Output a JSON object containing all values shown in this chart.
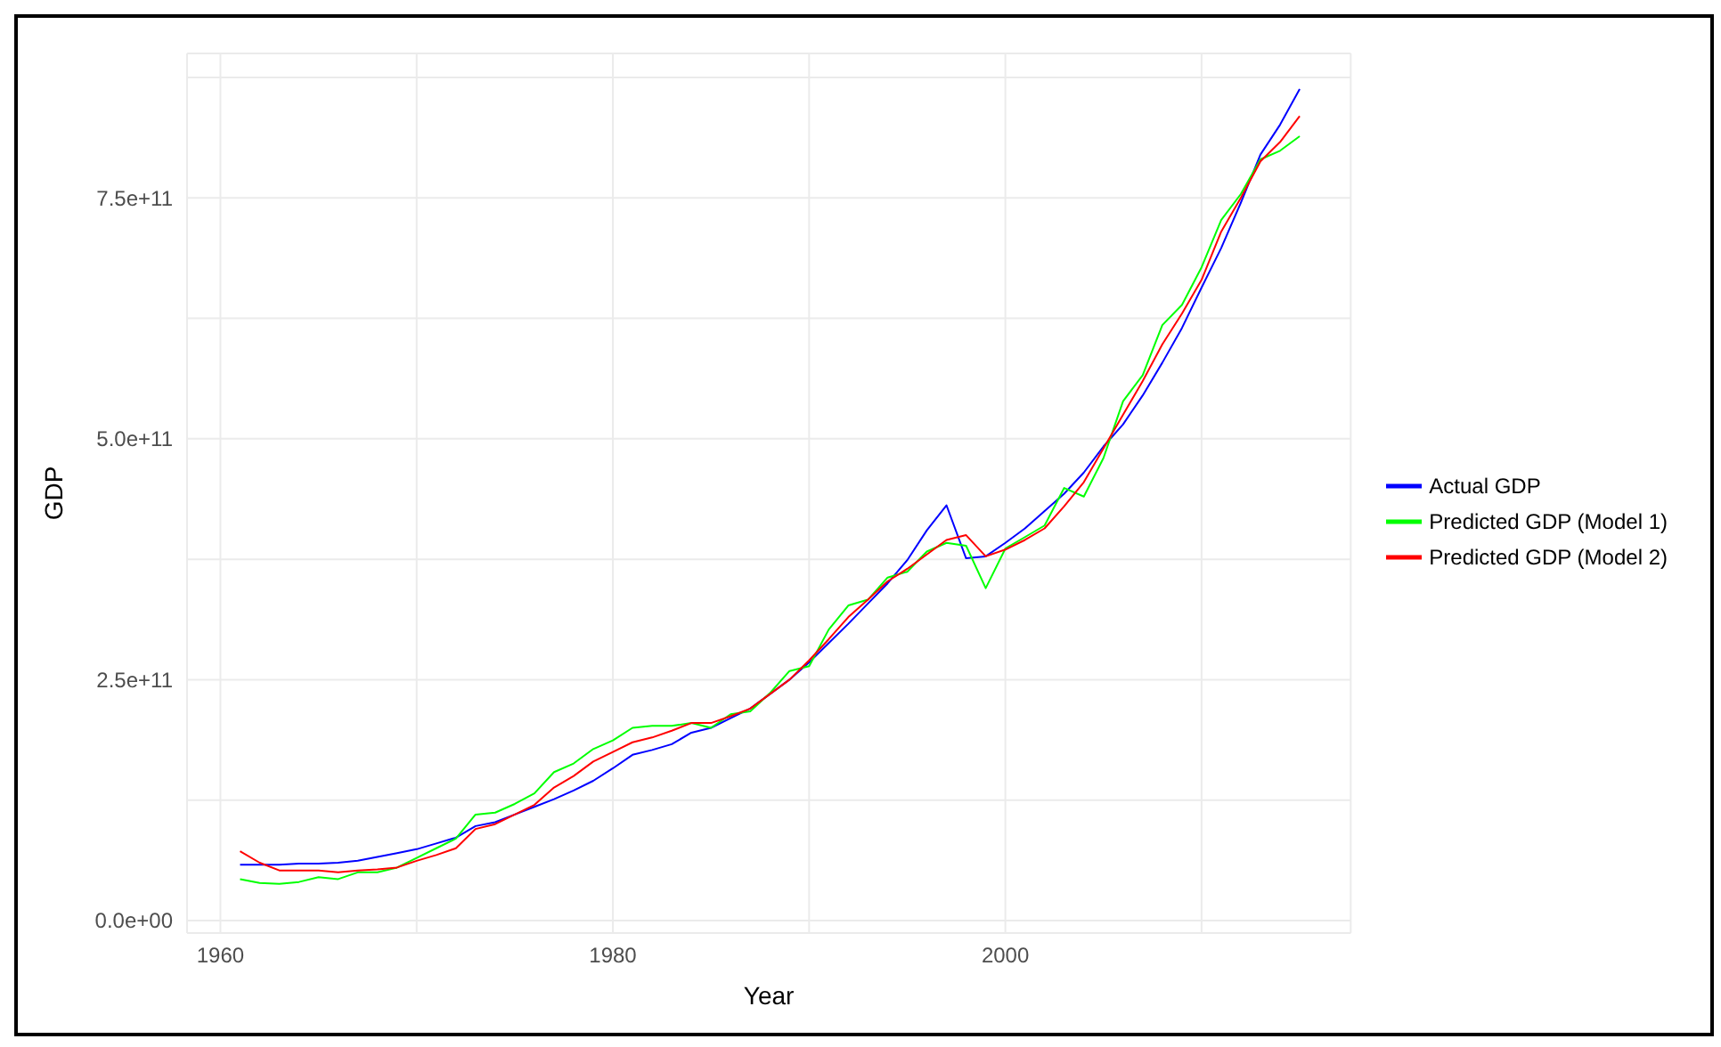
{
  "chart_data": {
    "type": "line",
    "xlabel": "Year",
    "ylabel": "GDP",
    "x": [
      1961,
      1962,
      1963,
      1964,
      1965,
      1966,
      1967,
      1968,
      1969,
      1970,
      1971,
      1972,
      1973,
      1974,
      1975,
      1976,
      1977,
      1978,
      1979,
      1980,
      1981,
      1982,
      1983,
      1984,
      1985,
      1986,
      1987,
      1988,
      1989,
      1990,
      1991,
      1992,
      1993,
      1994,
      1995,
      1996,
      1997,
      1998,
      1999,
      2000,
      2001,
      2002,
      2003,
      2004,
      2005,
      2006,
      2007,
      2008,
      2009,
      2010,
      2011,
      2012,
      2013,
      2014,
      2015
    ],
    "series": [
      {
        "name": "Actual GDP",
        "color": "#0000ff",
        "values": [
          58000000000.0,
          58000000000.0,
          58000000000.0,
          59000000000.0,
          59000000000.0,
          60000000000.0,
          62000000000.0,
          66000000000.0,
          70000000000.0,
          74000000000.0,
          80000000000.0,
          86000000000.0,
          98000000000.0,
          102000000000.0,
          110000000000.0,
          118000000000.0,
          126000000000.0,
          135000000000.0,
          145000000000.0,
          158000000000.0,
          172000000000.0,
          177000000000.0,
          183000000000.0,
          195000000000.0,
          200000000000.0,
          210000000000.0,
          220000000000.0,
          235000000000.0,
          250000000000.0,
          268000000000.0,
          288000000000.0,
          308000000000.0,
          329000000000.0,
          350000000000.0,
          374000000000.0,
          405000000000.0,
          431000000000.0,
          376000000000.0,
          378000000000.0,
          392000000000.0,
          407000000000.0,
          425000000000.0,
          443000000000.0,
          465000000000.0,
          492000000000.0,
          515000000000.0,
          545000000000.0,
          579000000000.0,
          615000000000.0,
          657000000000.0,
          698000000000.0,
          745000000000.0,
          795000000000.0,
          826000000000.0,
          863000000000.0
        ]
      },
      {
        "name": "Predicted GDP (Model 1)",
        "color": "#00ff00",
        "values": [
          43000000000.0,
          39000000000.0,
          38000000000.0,
          40000000000.0,
          45000000000.0,
          43000000000.0,
          50000000000.0,
          50000000000.0,
          55000000000.0,
          65000000000.0,
          75000000000.0,
          85000000000.0,
          110000000000.0,
          112000000000.0,
          121000000000.0,
          132000000000.0,
          154000000000.0,
          163000000000.0,
          178000000000.0,
          187000000000.0,
          200000000000.0,
          202000000000.0,
          202000000000.0,
          205000000000.0,
          200000000000.0,
          214000000000.0,
          217000000000.0,
          236000000000.0,
          259000000000.0,
          264000000000.0,
          302000000000.0,
          327000000000.0,
          333000000000.0,
          356000000000.0,
          362000000000.0,
          383000000000.0,
          392000000000.0,
          389000000000.0,
          345000000000.0,
          386000000000.0,
          398000000000.0,
          410000000000.0,
          449000000000.0,
          440000000000.0,
          480000000000.0,
          539000000000.0,
          566000000000.0,
          618000000000.0,
          639000000000.0,
          678000000000.0,
          727000000000.0,
          754000000000.0,
          790000000000.0,
          799000000000.0,
          814000000000.0
        ]
      },
      {
        "name": "Predicted GDP (Model 2)",
        "color": "#ff0000",
        "values": [
          72000000000.0,
          60000000000.0,
          52000000000.0,
          52000000000.0,
          52000000000.0,
          50000000000.0,
          52000000000.0,
          53000000000.0,
          55000000000.0,
          62000000000.0,
          68000000000.0,
          75000000000.0,
          95000000000.0,
          100000000000.0,
          110000000000.0,
          120000000000.0,
          138000000000.0,
          150000000000.0,
          165000000000.0,
          175000000000.0,
          185000000000.0,
          190000000000.0,
          197000000000.0,
          205000000000.0,
          205000000000.0,
          212000000000.0,
          220000000000.0,
          235000000000.0,
          250000000000.0,
          270000000000.0,
          292000000000.0,
          315000000000.0,
          333000000000.0,
          352000000000.0,
          365000000000.0,
          380000000000.0,
          395000000000.0,
          400000000000.0,
          378000000000.0,
          385000000000.0,
          395000000000.0,
          407000000000.0,
          430000000000.0,
          455000000000.0,
          490000000000.0,
          525000000000.0,
          560000000000.0,
          598000000000.0,
          630000000000.0,
          665000000000.0,
          715000000000.0,
          750000000000.0,
          788000000000.0,
          808000000000.0,
          835000000000.0
        ]
      }
    ],
    "xlim": [
      1958.3,
      2017.6
    ],
    "xticks": [
      1960,
      {
        "value": 1970,
        "label": null
      },
      1980,
      {
        "value": 1990,
        "label": null
      },
      2000,
      {
        "value": 2010,
        "label": null
      }
    ],
    "ylim": [
      -13000000000.0,
      900000000000.0
    ],
    "yticks": [
      {
        "value": 0,
        "label": "0.0e+00"
      },
      {
        "value": 125000000000.0,
        "label": null
      },
      {
        "value": 250000000000.0,
        "label": "2.5e+11"
      },
      {
        "value": 375000000000.0,
        "label": null
      },
      {
        "value": 500000000000.0,
        "label": "5.0e+11"
      },
      {
        "value": 625000000000.0,
        "label": null
      },
      {
        "value": 750000000000.0,
        "label": "7.5e+11"
      },
      {
        "value": 875000000000.0,
        "label": null
      }
    ],
    "grid": true,
    "legend": "right",
    "marker": "none",
    "line_style": "solid"
  }
}
